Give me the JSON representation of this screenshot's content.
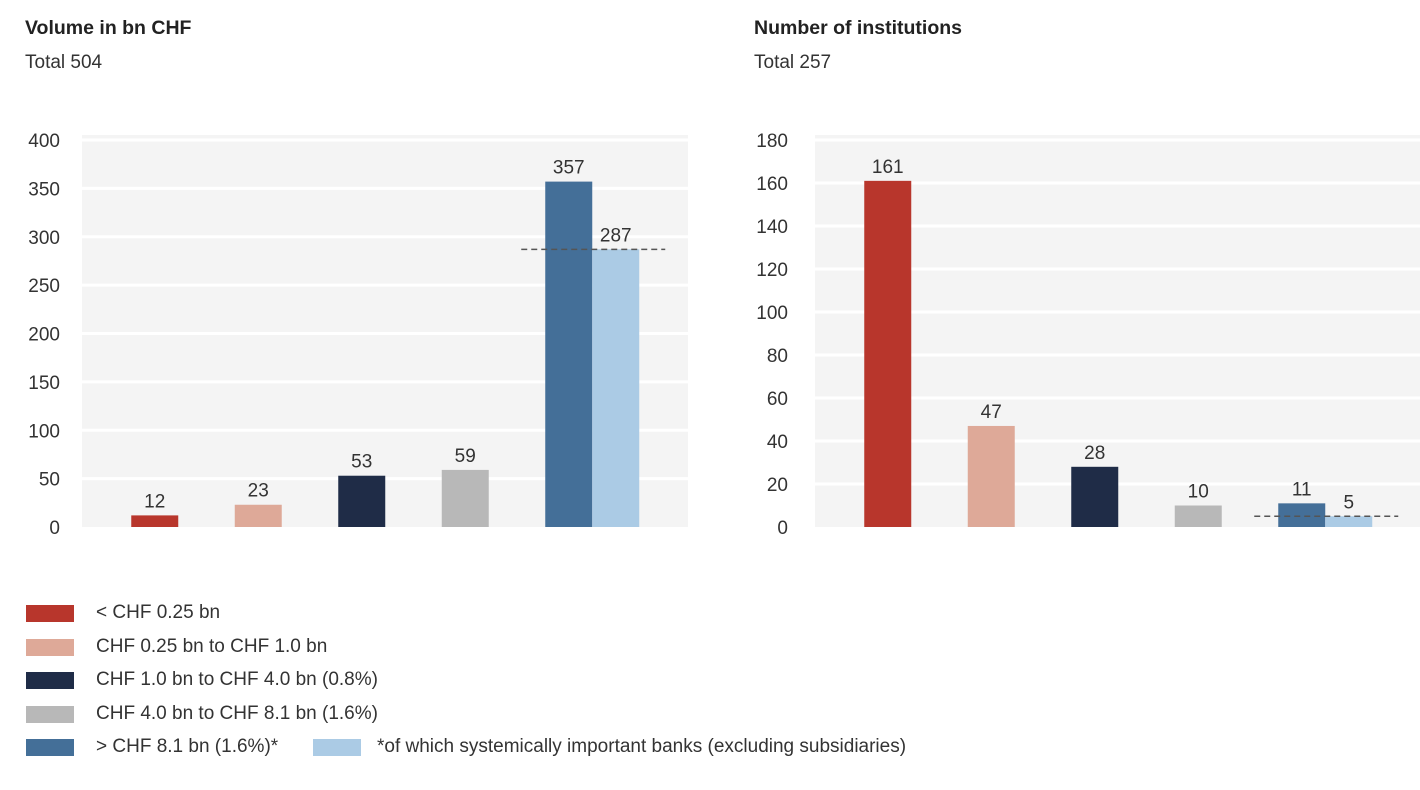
{
  "chart_data": [
    {
      "type": "bar",
      "title": "Volume in bn CHF",
      "subtitle": "Total 504",
      "xlabel": "",
      "ylabel": "",
      "ylim": [
        0,
        400
      ],
      "yticks": [
        0,
        50,
        100,
        150,
        200,
        250,
        300,
        350,
        400
      ],
      "grid": true,
      "categories": [
        "< CHF 0.25 bn",
        "CHF 0.25 bn to CHF 1.0 bn",
        "CHF 1.0 bn to CHF 4.0 bn (0.8%)",
        "CHF 4.0 bn to CHF 8.1 bn (1.6%)",
        "> CHF 8.1 bn (1.6%)*"
      ],
      "values": [
        12,
        23,
        53,
        59,
        357
      ],
      "value_labels": [
        "12",
        "23",
        "53",
        "59",
        "357"
      ],
      "colors": [
        "#b8362c",
        "#dea998",
        "#1f2c47",
        "#b8b8b8",
        "#446f98"
      ],
      "sub_series": {
        "name": "*of which systemically important banks (excluding subsidiaries)",
        "category_index": 4,
        "value": 287,
        "label": "287",
        "color": "#abcbe5"
      }
    },
    {
      "type": "bar",
      "title": "Number of institutions",
      "subtitle": "Total 257",
      "xlabel": "",
      "ylabel": "",
      "ylim": [
        0,
        180
      ],
      "yticks": [
        0,
        20,
        40,
        60,
        80,
        100,
        120,
        140,
        160,
        180
      ],
      "grid": true,
      "categories": [
        "< CHF 0.25 bn",
        "CHF 0.25 bn to CHF 1.0 bn",
        "CHF 1.0 bn to CHF 4.0 bn (0.8%)",
        "CHF 4.0 bn to CHF 8.1 bn (1.6%)",
        "> CHF 8.1 bn (1.6%)*"
      ],
      "values": [
        161,
        47,
        28,
        10,
        11
      ],
      "value_labels": [
        "161",
        "47",
        "28",
        "10",
        "11"
      ],
      "colors": [
        "#b8362c",
        "#dea998",
        "#1f2c47",
        "#b8b8b8",
        "#446f98"
      ],
      "sub_series": {
        "name": "*of which systemically important banks (excluding subsidiaries)",
        "category_index": 4,
        "value": 5,
        "label": "5",
        "color": "#abcbe5"
      }
    }
  ],
  "legend": {
    "items": [
      {
        "label": "< CHF 0.25 bn",
        "color": "#b8362c"
      },
      {
        "label": "CHF 0.25 bn to CHF 1.0 bn",
        "color": "#dea998"
      },
      {
        "label": "CHF 1.0 bn to CHF 4.0 bn (0.8%)",
        "color": "#1f2c47"
      },
      {
        "label": "CHF 4.0 bn to CHF 8.1 bn (1.6%)",
        "color": "#b8b8b8"
      },
      {
        "label": "> CHF 8.1 bn (1.6%)*",
        "color": "#446f98"
      }
    ],
    "extra": {
      "label": "*of which systemically important banks (excluding subsidiaries)",
      "color": "#abcbe5"
    }
  }
}
